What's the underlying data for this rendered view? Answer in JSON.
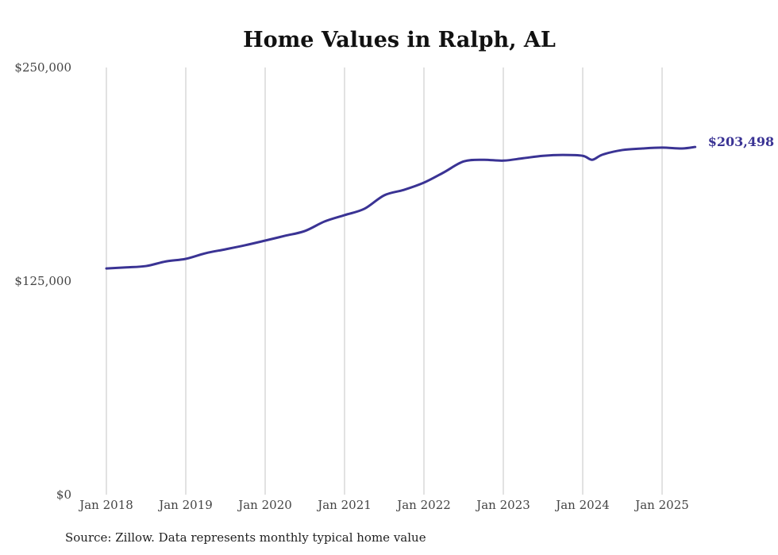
{
  "chart_data": {
    "type": "line",
    "title": "Home Values in Ralph, AL",
    "xlabel": "",
    "ylabel": "",
    "ylim": [
      0,
      250000
    ],
    "xlim": [
      2018.0,
      2025.417
    ],
    "y_ticks": [
      {
        "value": 0,
        "label": "$0"
      },
      {
        "value": 125000,
        "label": "$125,000"
      },
      {
        "value": 250000,
        "label": "$250,000"
      }
    ],
    "x_ticks": [
      {
        "value": 2018,
        "label": "Jan 2018"
      },
      {
        "value": 2019,
        "label": "Jan 2019"
      },
      {
        "value": 2020,
        "label": "Jan 2020"
      },
      {
        "value": 2021,
        "label": "Jan 2021"
      },
      {
        "value": 2022,
        "label": "Jan 2022"
      },
      {
        "value": 2023,
        "label": "Jan 2023"
      },
      {
        "value": 2024,
        "label": "Jan 2024"
      },
      {
        "value": 2025,
        "label": "Jan 2025"
      }
    ],
    "grid": "vertical",
    "line_color": "#3a3394",
    "series": [
      {
        "name": "Typical home value",
        "x": [
          2018.0,
          2018.25,
          2018.5,
          2018.75,
          2019.0,
          2019.25,
          2019.5,
          2019.75,
          2020.0,
          2020.25,
          2020.5,
          2020.75,
          2021.0,
          2021.25,
          2021.5,
          2021.75,
          2022.0,
          2022.25,
          2022.5,
          2022.75,
          2023.0,
          2023.25,
          2023.5,
          2023.75,
          2024.0,
          2024.12,
          2024.25,
          2024.5,
          2024.75,
          2025.0,
          2025.25,
          2025.417
        ],
        "values": [
          132400,
          133000,
          133800,
          136500,
          138000,
          141300,
          143600,
          146000,
          148700,
          151500,
          154300,
          159900,
          163600,
          167300,
          175200,
          178400,
          182600,
          188600,
          195000,
          196000,
          195500,
          196900,
          198300,
          198800,
          198300,
          196000,
          199000,
          201700,
          202600,
          203100,
          202600,
          203498
        ]
      }
    ],
    "end_label": "$203,498"
  },
  "source": "Source: Zillow. Data represents monthly typical home value"
}
